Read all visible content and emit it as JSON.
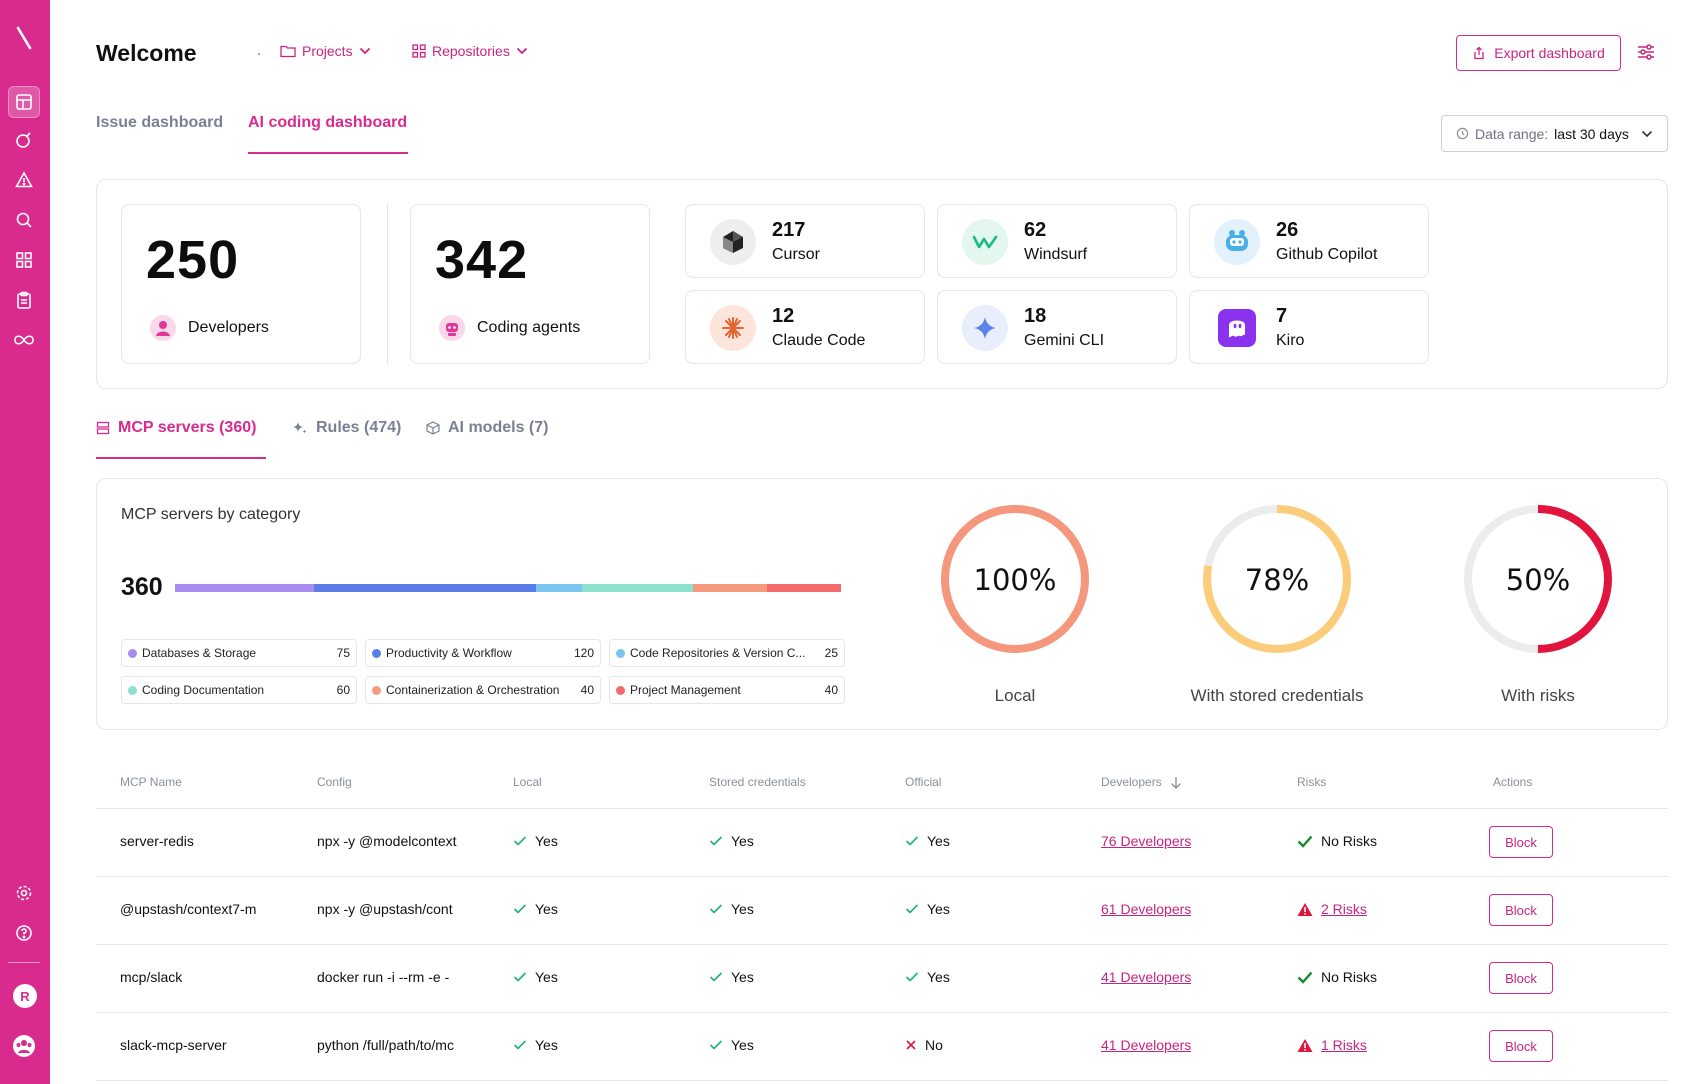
{
  "header": {
    "title": "Welcome",
    "projects_label": "Projects",
    "repositories_label": "Repositories",
    "export_label": "Export dashboard"
  },
  "page_tabs": [
    {
      "label": "Issue dashboard",
      "active": false
    },
    {
      "label": "AI coding dashboard",
      "active": true
    }
  ],
  "date_range": {
    "prefix": "Data range:",
    "value": "last 30 days"
  },
  "summary": {
    "developers": {
      "count": "250",
      "label": "Developers"
    },
    "agents": {
      "count": "342",
      "label": "Coding agents"
    },
    "tools": [
      {
        "count": "217",
        "name": "Cursor",
        "icon": "cursor-icon"
      },
      {
        "count": "62",
        "name": "Windsurf",
        "icon": "windsurf-icon"
      },
      {
        "count": "26",
        "name": "Github Copilot",
        "icon": "copilot-icon"
      },
      {
        "count": "12",
        "name": "Claude Code",
        "icon": "claude-icon"
      },
      {
        "count": "18",
        "name": "Gemini CLI",
        "icon": "gemini-icon"
      },
      {
        "count": "7",
        "name": "Kiro",
        "icon": "kiro-icon"
      }
    ]
  },
  "sub_tabs": [
    {
      "label": "MCP servers (360)",
      "active": true
    },
    {
      "label": "Rules (474)",
      "active": false
    },
    {
      "label": "AI models (7)",
      "active": false
    }
  ],
  "mcp_category": {
    "title": "MCP servers by category",
    "total": "360",
    "categories": [
      {
        "name": "Databases & Storage",
        "value": 75,
        "color": "#a88cf0"
      },
      {
        "name": "Productivity & Workflow",
        "value": 120,
        "color": "#5a7de8"
      },
      {
        "name": "Code Repositories & Version C...",
        "value": 25,
        "color": "#7cc4f2"
      },
      {
        "name": "Coding Documentation",
        "value": 60,
        "color": "#8ee0cf"
      },
      {
        "name": "Containerization & Orchestration",
        "value": 40,
        "color": "#f59a7c"
      },
      {
        "name": "Project Management",
        "value": 40,
        "color": "#f26a6a"
      }
    ]
  },
  "donuts": [
    {
      "pct": "100%",
      "fraction": 1.0,
      "label": "Local",
      "color": "#f5977c"
    },
    {
      "pct": "78%",
      "fraction": 0.78,
      "label": "With stored credentials",
      "color": "#fbcd7a"
    },
    {
      "pct": "50%",
      "fraction": 0.5,
      "label": "With risks",
      "color": "#e0143c"
    }
  ],
  "table": {
    "headers": [
      "MCP Name",
      "Config",
      "Local",
      "Stored credentials",
      "Official",
      "Developers",
      "Risks",
      "Actions"
    ],
    "rows": [
      {
        "name": "server-redis",
        "config": "npx -y @modelcontext",
        "local": "Yes",
        "stored": "Yes",
        "official": "Yes",
        "official_ok": true,
        "developers": "76 Developers",
        "risks": "No Risks",
        "has_risk": false,
        "action": "Block"
      },
      {
        "name": "@upstash/context7-m",
        "config": "npx -y @upstash/cont",
        "local": "Yes",
        "stored": "Yes",
        "official": "Yes",
        "official_ok": true,
        "developers": "61 Developers",
        "risks": "2 Risks",
        "has_risk": true,
        "action": "Block"
      },
      {
        "name": "mcp/slack",
        "config": "docker run -i --rm -e -",
        "local": "Yes",
        "stored": "Yes",
        "official": "Yes",
        "official_ok": true,
        "developers": "41 Developers",
        "risks": "No Risks",
        "has_risk": false,
        "action": "Block"
      },
      {
        "name": "slack-mcp-server",
        "config": "python /full/path/to/mc",
        "local": "Yes",
        "stored": "Yes",
        "official": "No",
        "official_ok": false,
        "developers": "41 Developers",
        "risks": "1 Risks",
        "has_risk": true,
        "action": "Block"
      }
    ]
  }
}
